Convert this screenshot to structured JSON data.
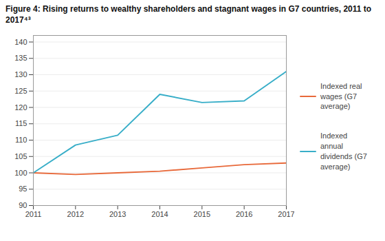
{
  "chart_data": {
    "type": "line",
    "title": "Figure 4: Rising returns to wealthy shareholders and stagnant wages in G7 countries, 2011 to 2017⁴³",
    "x": [
      2011,
      2012,
      2013,
      2014,
      2015,
      2016,
      2017
    ],
    "series": [
      {
        "name": "Indexed real\nwages (G7\naverage)",
        "color": "#e8693a",
        "values": [
          100,
          99.5,
          100.0,
          100.5,
          101.5,
          102.5,
          103.0
        ]
      },
      {
        "name": "Indexed\nannual\ndividends (G7\naverage)",
        "color": "#38aec8",
        "values": [
          100,
          108.5,
          111.5,
          124.0,
          121.5,
          122.0,
          131.0
        ]
      }
    ],
    "xlim": [
      2011,
      2017
    ],
    "xticks": [
      2011,
      2012,
      2013,
      2014,
      2015,
      2016,
      2017
    ],
    "ylim": [
      90,
      142
    ],
    "yticks": [
      90,
      95,
      100,
      105,
      110,
      115,
      120,
      125,
      130,
      135,
      140
    ],
    "grid": true,
    "legend": "right"
  }
}
